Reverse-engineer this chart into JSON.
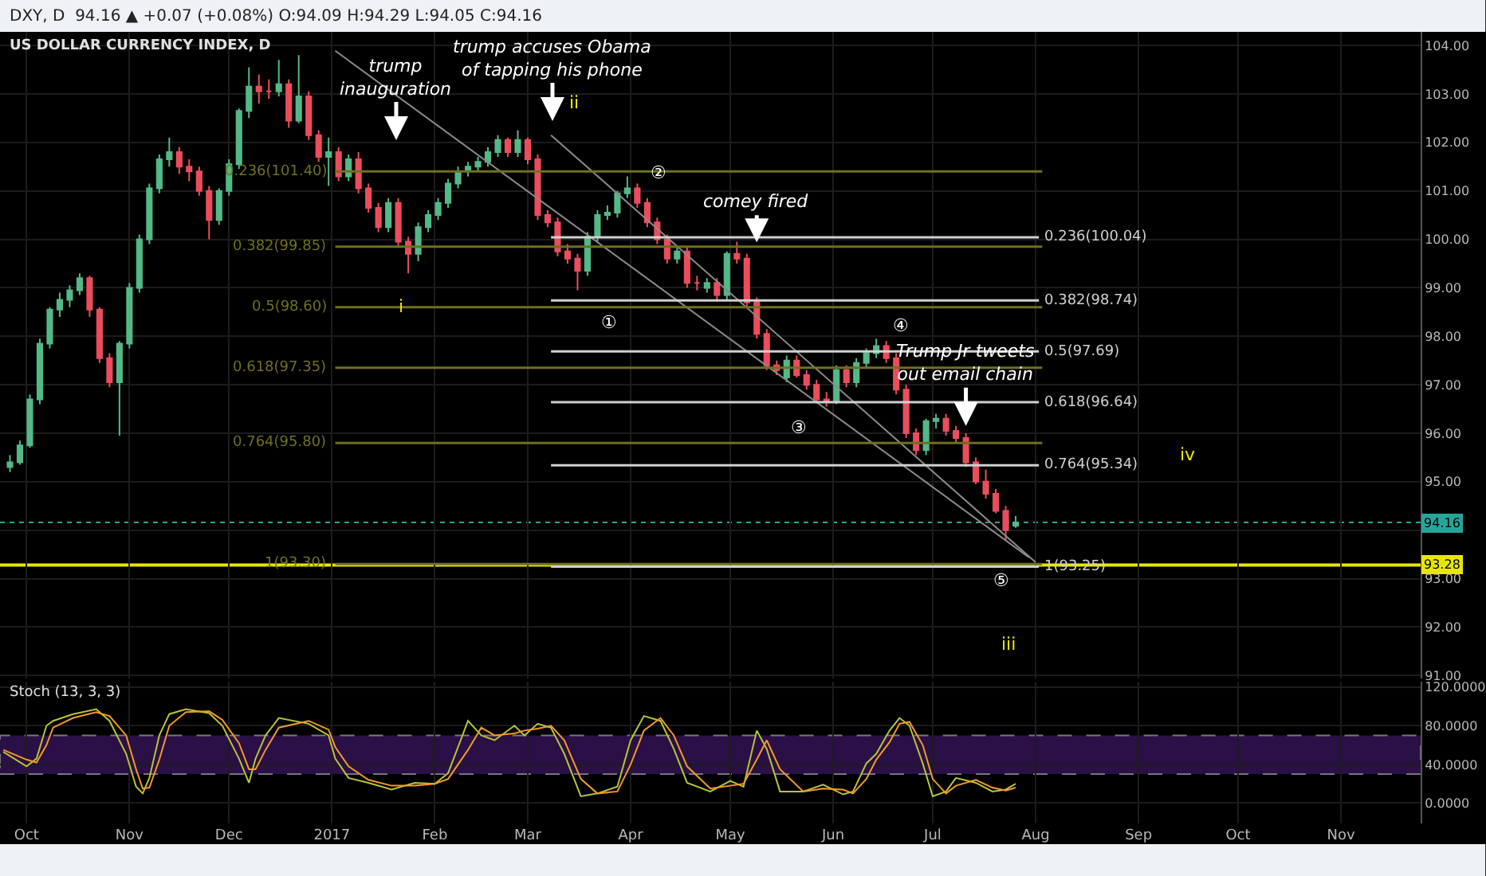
{
  "chart_data": [
    {
      "type": "candlestick",
      "title": "US DOLLAR CURRENCY INDEX, D",
      "subtitle": "DXY, D  94.16 ▲ +0.07 (+0.08%) O:94.09 H:94.29 L:94.05 C:94.16",
      "x": [
        "2016-09-26",
        "2016-09-29",
        "2016-10-02",
        "2016-10-05",
        "2016-10-08",
        "2016-10-11",
        "2016-10-14",
        "2016-10-17",
        "2016-10-20",
        "2016-10-23",
        "2016-10-26",
        "2016-10-29",
        "2016-11-01",
        "2016-11-04",
        "2016-11-07",
        "2016-11-10",
        "2016-11-13",
        "2016-11-16",
        "2016-11-19",
        "2016-11-22",
        "2016-11-25",
        "2016-11-28",
        "2016-12-01",
        "2016-12-04",
        "2016-12-07",
        "2016-12-10",
        "2016-12-13",
        "2016-12-16",
        "2016-12-19",
        "2016-12-22",
        "2016-12-25",
        "2016-12-28",
        "2016-12-31",
        "2017-01-03",
        "2017-01-06",
        "2017-01-09",
        "2017-01-12",
        "2017-01-15",
        "2017-01-18",
        "2017-01-21",
        "2017-01-24",
        "2017-01-27",
        "2017-01-30",
        "2017-02-02",
        "2017-02-05",
        "2017-02-08",
        "2017-02-11",
        "2017-02-14",
        "2017-02-17",
        "2017-02-20",
        "2017-02-23",
        "2017-02-26",
        "2017-03-01",
        "2017-03-04",
        "2017-03-07",
        "2017-03-10",
        "2017-03-13",
        "2017-03-16",
        "2017-03-19",
        "2017-03-22",
        "2017-03-25",
        "2017-03-28",
        "2017-03-31",
        "2017-04-03",
        "2017-04-06",
        "2017-04-09",
        "2017-04-12",
        "2017-04-15",
        "2017-04-18",
        "2017-04-21",
        "2017-04-24",
        "2017-04-27",
        "2017-04-30",
        "2017-05-03",
        "2017-05-06",
        "2017-05-09",
        "2017-05-12",
        "2017-05-15",
        "2017-05-18",
        "2017-05-21",
        "2017-05-24",
        "2017-05-27",
        "2017-05-30",
        "2017-06-02",
        "2017-06-05",
        "2017-06-08",
        "2017-06-11",
        "2017-06-14",
        "2017-06-17",
        "2017-06-20",
        "2017-06-23",
        "2017-06-26",
        "2017-06-29",
        "2017-07-02",
        "2017-07-05",
        "2017-07-08",
        "2017-07-11",
        "2017-07-14",
        "2017-07-17",
        "2017-07-20",
        "2017-07-23",
        "2017-07-26"
      ],
      "ohlc": [
        [
          95.3,
          95.55,
          95.2,
          95.4
        ],
        [
          95.4,
          95.85,
          95.35,
          95.75
        ],
        [
          95.75,
          96.8,
          95.7,
          96.7
        ],
        [
          96.7,
          97.95,
          96.6,
          97.85
        ],
        [
          97.85,
          98.6,
          97.75,
          98.55
        ],
        [
          98.55,
          98.9,
          98.4,
          98.75
        ],
        [
          98.75,
          99.05,
          98.6,
          98.95
        ],
        [
          98.95,
          99.3,
          98.85,
          99.2
        ],
        [
          99.2,
          99.25,
          98.4,
          98.55
        ],
        [
          98.55,
          98.6,
          97.45,
          97.55
        ],
        [
          97.55,
          97.65,
          96.95,
          97.05
        ],
        [
          97.05,
          97.9,
          95.95,
          97.85
        ],
        [
          97.85,
          99.1,
          97.75,
          99.0
        ],
        [
          99.0,
          100.1,
          98.9,
          100.0
        ],
        [
          100.0,
          101.15,
          99.9,
          101.05
        ],
        [
          101.05,
          101.75,
          100.95,
          101.65
        ],
        [
          101.65,
          102.1,
          101.5,
          101.8
        ],
        [
          101.8,
          101.9,
          101.35,
          101.5
        ],
        [
          101.5,
          101.65,
          101.2,
          101.4
        ],
        [
          101.4,
          101.5,
          100.9,
          101.0
        ],
        [
          101.0,
          101.1,
          100.0,
          100.4
        ],
        [
          100.4,
          101.05,
          100.3,
          101.0
        ],
        [
          101.0,
          101.65,
          100.9,
          101.55
        ],
        [
          101.55,
          102.7,
          101.45,
          102.65
        ],
        [
          102.65,
          103.55,
          102.5,
          103.15
        ],
        [
          103.15,
          103.4,
          102.8,
          103.05
        ],
        [
          103.05,
          103.3,
          102.9,
          103.05
        ],
        [
          103.05,
          103.7,
          102.95,
          103.2
        ],
        [
          103.2,
          103.3,
          102.3,
          102.45
        ],
        [
          102.45,
          103.8,
          102.4,
          102.95
        ],
        [
          102.95,
          103.05,
          102.05,
          102.15
        ],
        [
          102.15,
          102.25,
          101.6,
          101.7
        ],
        [
          101.7,
          102.1,
          101.1,
          101.8
        ],
        [
          101.8,
          101.9,
          101.2,
          101.3
        ],
        [
          101.3,
          101.75,
          101.2,
          101.65
        ],
        [
          101.65,
          101.8,
          100.95,
          101.05
        ],
        [
          101.05,
          101.15,
          100.55,
          100.65
        ],
        [
          100.65,
          100.75,
          100.15,
          100.25
        ],
        [
          100.25,
          100.85,
          100.15,
          100.75
        ],
        [
          100.75,
          100.85,
          99.85,
          99.95
        ],
        [
          99.95,
          100.05,
          99.3,
          99.7
        ],
        [
          99.7,
          100.35,
          99.55,
          100.25
        ],
        [
          100.25,
          100.6,
          100.15,
          100.5
        ],
        [
          100.5,
          100.85,
          100.4,
          100.75
        ],
        [
          100.75,
          101.25,
          100.65,
          101.15
        ],
        [
          101.15,
          101.5,
          101.05,
          101.4
        ],
        [
          101.4,
          101.6,
          101.3,
          101.5
        ],
        [
          101.5,
          101.7,
          101.4,
          101.6
        ],
        [
          101.6,
          101.9,
          101.5,
          101.8
        ],
        [
          101.8,
          102.15,
          101.7,
          102.05
        ],
        [
          102.05,
          102.1,
          101.7,
          101.8
        ],
        [
          101.8,
          102.25,
          101.7,
          102.05
        ],
        [
          102.05,
          102.1,
          101.55,
          101.65
        ],
        [
          101.65,
          101.75,
          100.4,
          100.5
        ],
        [
          100.5,
          100.6,
          100.25,
          100.35
        ],
        [
          100.35,
          100.45,
          99.65,
          99.75
        ],
        [
          99.75,
          99.9,
          99.5,
          99.6
        ],
        [
          99.6,
          99.7,
          98.95,
          99.35
        ],
        [
          99.35,
          100.15,
          99.25,
          100.05
        ],
        [
          100.05,
          100.6,
          99.95,
          100.5
        ],
        [
          100.5,
          100.7,
          100.4,
          100.55
        ],
        [
          100.55,
          101.0,
          100.45,
          100.95
        ],
        [
          100.95,
          101.3,
          100.85,
          101.05
        ],
        [
          101.05,
          101.15,
          100.65,
          100.75
        ],
        [
          100.75,
          100.85,
          100.25,
          100.35
        ],
        [
          100.35,
          100.45,
          99.9,
          100.0
        ],
        [
          100.0,
          100.1,
          99.5,
          99.6
        ],
        [
          99.6,
          99.85,
          99.5,
          99.75
        ],
        [
          99.75,
          99.85,
          99.0,
          99.1
        ],
        [
          99.1,
          99.25,
          98.95,
          99.1
        ],
        [
          99.0,
          99.2,
          98.9,
          99.1
        ],
        [
          99.1,
          99.2,
          98.75,
          98.85
        ],
        [
          98.85,
          99.75,
          98.75,
          99.7
        ],
        [
          99.7,
          99.95,
          99.5,
          99.6
        ],
        [
          99.6,
          99.7,
          98.6,
          98.7
        ],
        [
          98.7,
          98.8,
          97.95,
          98.05
        ],
        [
          98.05,
          98.15,
          97.3,
          97.4
        ],
        [
          97.4,
          97.5,
          97.2,
          97.3
        ],
        [
          97.15,
          97.6,
          97.05,
          97.5
        ],
        [
          97.5,
          97.6,
          97.15,
          97.2
        ],
        [
          97.2,
          97.3,
          96.9,
          97.0
        ],
        [
          97.0,
          97.1,
          96.65,
          96.7
        ],
        [
          96.7,
          96.85,
          96.55,
          96.65
        ],
        [
          96.65,
          97.4,
          96.6,
          97.3
        ],
        [
          97.3,
          97.4,
          96.95,
          97.05
        ],
        [
          97.05,
          97.55,
          96.95,
          97.45
        ],
        [
          97.45,
          97.75,
          97.35,
          97.65
        ],
        [
          97.65,
          97.95,
          97.55,
          97.8
        ],
        [
          97.8,
          97.9,
          97.45,
          97.55
        ],
        [
          97.55,
          97.65,
          96.8,
          96.9
        ],
        [
          96.9,
          97.0,
          95.9,
          96.0
        ],
        [
          96.0,
          96.1,
          95.55,
          95.65
        ],
        [
          95.65,
          96.3,
          95.55,
          96.25
        ],
        [
          96.25,
          96.4,
          96.1,
          96.3
        ],
        [
          96.3,
          96.4,
          95.95,
          96.05
        ],
        [
          96.05,
          96.15,
          95.8,
          95.9
        ],
        [
          95.9,
          96.0,
          95.3,
          95.4
        ],
        [
          95.4,
          95.5,
          94.95,
          95.0
        ],
        [
          95.0,
          95.25,
          94.65,
          94.75
        ],
        [
          94.75,
          94.85,
          94.35,
          94.4
        ],
        [
          94.4,
          94.5,
          93.8,
          94.0
        ],
        [
          94.09,
          94.29,
          94.05,
          94.16
        ]
      ],
      "series": [
        {
          "type": "line",
          "color": "#8a8a8a",
          "x": [
            "2017-01-02",
            "2017-07-30"
          ],
          "values": [
            103.89,
            93.44
          ]
        },
        {
          "type": "line",
          "color": "#8a8a8a",
          "x": [
            "2017-03-08",
            "2017-08-01"
          ],
          "values": [
            102.15,
            93.34
          ]
        },
        {
          "type": "line",
          "name": "0.236(101.40)",
          "color": "#6f6f22",
          "x": [
            "2017-01-02",
            "2017-08-03"
          ],
          "values": [
            101.4,
            101.4
          ]
        },
        {
          "type": "line",
          "name": "0.382(99.85)",
          "color": "#6f6f22",
          "x": [
            "2017-01-02",
            "2017-08-03"
          ],
          "values": [
            99.85,
            99.85
          ]
        },
        {
          "type": "line",
          "name": "0.5(98.60)",
          "color": "#6f6f22",
          "x": [
            "2017-01-02",
            "2017-08-03"
          ],
          "values": [
            98.6,
            98.6
          ]
        },
        {
          "type": "line",
          "name": "0.618(97.35)",
          "color": "#6f6f22",
          "x": [
            "2017-01-02",
            "2017-08-03"
          ],
          "values": [
            97.35,
            97.35
          ]
        },
        {
          "type": "line",
          "name": "0.764(95.80)",
          "color": "#6f6f22",
          "x": [
            "2017-01-02",
            "2017-08-03"
          ],
          "values": [
            95.8,
            95.8
          ]
        },
        {
          "type": "line",
          "name": "1(93.30)",
          "color": "#6f6f22",
          "x": [
            "2017-01-02",
            "2017-08-03"
          ],
          "values": [
            93.3,
            93.3
          ]
        },
        {
          "type": "line",
          "name": "0.236(100.04)",
          "color": "#d0d0d0",
          "x": [
            "2017-08-02",
            "2017-03-08"
          ],
          "values": [
            100.04,
            100.04
          ]
        },
        {
          "type": "line",
          "name": "0.382(98.74)",
          "color": "#d0d0d0",
          "x": [
            "2017-08-02",
            "2017-03-08"
          ],
          "values": [
            98.74,
            98.74
          ]
        },
        {
          "type": "line",
          "name": "0.5(97.69)",
          "color": "#d0d0d0",
          "x": [
            "2017-08-02",
            "2017-03-08"
          ],
          "values": [
            97.69,
            97.69
          ]
        },
        {
          "type": "line",
          "name": "0.618(96.64)",
          "color": "#d0d0d0",
          "x": [
            "2017-08-02",
            "2017-03-08"
          ],
          "values": [
            96.64,
            96.64
          ]
        },
        {
          "type": "line",
          "name": "0.764(95.34)",
          "color": "#d0d0d0",
          "x": [
            "2017-08-02",
            "2017-03-08"
          ],
          "values": [
            95.34,
            95.34
          ]
        },
        {
          "type": "line",
          "name": "1(93.25)",
          "color": "#d0d0d0",
          "x": [
            "2017-08-02",
            "2017-03-08"
          ],
          "values": [
            93.25,
            93.25
          ]
        }
      ],
      "annotations": [
        {
          "text": "comey fired",
          "x": "2017-05-09",
          "y": 99.94
        },
        "trump\ninauguration",
        "trump accuses Obama\nof tapping his phone",
        {
          "text": "Trump Jr tweets\nout email chain",
          "x": "2017-07-11",
          "y": 96.15
        },
        "①",
        "②",
        "③",
        "④",
        "⑤",
        "i",
        "ii",
        "iii",
        "iv"
      ],
      "ref_lines": [
        {
          "axis": "y",
          "value": 94.16,
          "label": "94.16",
          "color": "#26a69a",
          "line_style": "dotted"
        },
        {
          "axis": "y",
          "value": 93.28,
          "label": "93.28",
          "color": "#e8e600",
          "line_style": "solid"
        }
      ],
      "xlim": [
        "2016-09-23",
        "2017-11-25"
      ],
      "xticks": [
        {
          "value": "2016-10-01",
          "label": null
        },
        {
          "value": "2016-11-01",
          "label": null
        },
        {
          "value": "2016-12-01",
          "label": null
        },
        {
          "value": "2017-01-01",
          "label": null
        },
        {
          "value": "2017-02-01",
          "label": null
        },
        {
          "value": "2017-03-01",
          "label": null
        },
        {
          "value": "2017-04-01",
          "label": null
        },
        {
          "value": "2017-05-01",
          "label": null
        },
        {
          "value": "2017-06-01",
          "label": null
        },
        {
          "value": "2017-07-01",
          "label": null
        },
        {
          "value": "2017-08-01",
          "label": null
        },
        {
          "value": "2017-09-01",
          "label": null
        },
        {
          "value": "2017-10-01",
          "label": null
        },
        {
          "value": "2017-11-01",
          "label": null
        }
      ],
      "ylim": [
        90.94,
        104.28
      ],
      "yticks": [
        {
          "value": 91,
          "label": "91.00"
        },
        {
          "value": 92,
          "label": "92.00"
        },
        {
          "value": 93,
          "label": "93.00"
        },
        {
          "value": 94,
          "label": null
        },
        {
          "value": 95,
          "label": "95.00"
        },
        {
          "value": 96,
          "label": "96.00"
        },
        {
          "value": 97,
          "label": "97.00"
        },
        {
          "value": 98,
          "label": "98.00"
        },
        {
          "value": 99,
          "label": "99.00"
        },
        {
          "value": 100,
          "label": "100.00"
        },
        {
          "value": 101,
          "label": "101.00"
        },
        {
          "value": 102,
          "label": "102.00"
        },
        {
          "value": 103,
          "label": "103.00"
        },
        {
          "value": 104,
          "label": "104.00"
        }
      ],
      "grid": true,
      "tick_labels": "y"
    },
    {
      "type": "line",
      "title": "Stoch (13, 3, 3)",
      "x": [
        "2016-09-24",
        "2016-10-01",
        "2016-10-04",
        "2016-10-07",
        "2016-10-09",
        "2016-10-15",
        "2016-10-22",
        "2016-10-26",
        "2016-10-31",
        "2016-11-03",
        "2016-11-05",
        "2016-11-07",
        "2016-11-10",
        "2016-11-13",
        "2016-11-18",
        "2016-11-25",
        "2016-11-29",
        "2016-12-04",
        "2016-12-07",
        "2016-12-09",
        "2016-12-12",
        "2016-12-16",
        "2016-12-25",
        "2016-12-31",
        "2017-01-02",
        "2017-01-06",
        "2017-01-12",
        "2017-01-19",
        "2017-01-26",
        "2017-02-01",
        "2017-02-05",
        "2017-02-11",
        "2017-02-15",
        "2017-02-19",
        "2017-02-25",
        "2017-02-28",
        "2017-03-04",
        "2017-03-08",
        "2017-03-12",
        "2017-03-17",
        "2017-03-22",
        "2017-03-28",
        "2017-04-01",
        "2017-04-05",
        "2017-04-10",
        "2017-04-14",
        "2017-04-18",
        "2017-04-25",
        "2017-05-01",
        "2017-05-05",
        "2017-05-09",
        "2017-05-12",
        "2017-05-16",
        "2017-05-23",
        "2017-05-29",
        "2017-06-04",
        "2017-06-07",
        "2017-06-11",
        "2017-06-14",
        "2017-06-18",
        "2017-06-21",
        "2017-06-24",
        "2017-06-28",
        "2017-07-01",
        "2017-07-05",
        "2017-07-08",
        "2017-07-14",
        "2017-07-19",
        "2017-07-23",
        "2017-07-26"
      ],
      "series": [
        {
          "color": "#b9c23a",
          "values": [
            53,
            38,
            46,
            80,
            85,
            92,
            97,
            85,
            51,
            17,
            10,
            26,
            70,
            92,
            97,
            93,
            80,
            46,
            21,
            46,
            70,
            88,
            82,
            70,
            46,
            26,
            21,
            14,
            21,
            20,
            31,
            85,
            70,
            65,
            80,
            70,
            82,
            78,
            51,
            7,
            10,
            17,
            65,
            90,
            85,
            56,
            21,
            12,
            23,
            17,
            75,
            56,
            12,
            12,
            19,
            9,
            12,
            41,
            51,
            75,
            88,
            80,
            41,
            7,
            12,
            26,
            21,
            12,
            14,
            20
          ]
        },
        {
          "color": "#f09a2a",
          "values": [
            55,
            45,
            42,
            60,
            78,
            88,
            94,
            90,
            70,
            35,
            15,
            16,
            45,
            80,
            94,
            95,
            86,
            62,
            35,
            35,
            55,
            78,
            85,
            76,
            58,
            38,
            24,
            18,
            18,
            20,
            25,
            55,
            78,
            70,
            72,
            75,
            77,
            80,
            65,
            25,
            10,
            12,
            40,
            75,
            88,
            70,
            38,
            15,
            18,
            20,
            45,
            65,
            35,
            12,
            15,
            14,
            10,
            25,
            45,
            63,
            82,
            84,
            60,
            25,
            10,
            18,
            24,
            16,
            13,
            16
          ]
        }
      ],
      "bands": [
        {
          "axis": "y",
          "from": 30,
          "to": 70,
          "color": "#2a1046"
        }
      ],
      "xlim": [
        "2016-09-23",
        "2017-11-25"
      ],
      "xticks": [
        {
          "value": "2016-10-01",
          "label": "Oct"
        },
        {
          "value": "2016-11-01",
          "label": "Nov"
        },
        {
          "value": "2016-12-01",
          "label": "Dec"
        },
        {
          "value": "2017-01-01",
          "label": "2017"
        },
        {
          "value": "2017-02-01",
          "label": "Feb"
        },
        {
          "value": "2017-03-01",
          "label": "Mar"
        },
        {
          "value": "2017-04-01",
          "label": "Apr"
        },
        {
          "value": "2017-05-01",
          "label": "May"
        },
        {
          "value": "2017-06-01",
          "label": "Jun"
        },
        {
          "value": "2017-07-01",
          "label": "Jul"
        },
        {
          "value": "2017-08-01",
          "label": "Aug"
        },
        {
          "value": "2017-09-01",
          "label": "Sep"
        },
        {
          "value": "2017-10-01",
          "label": "Oct"
        },
        {
          "value": "2017-11-01",
          "label": "Nov"
        }
      ],
      "ylim": [
        -21,
        125.5
      ],
      "yticks": [
        {
          "value": 0,
          "label": "0.0000"
        },
        {
          "value": 40,
          "label": "40.0000"
        },
        {
          "value": 80,
          "label": "80.0000"
        },
        {
          "value": 120,
          "label": "120.0000"
        }
      ],
      "grid": true
    }
  ]
}
